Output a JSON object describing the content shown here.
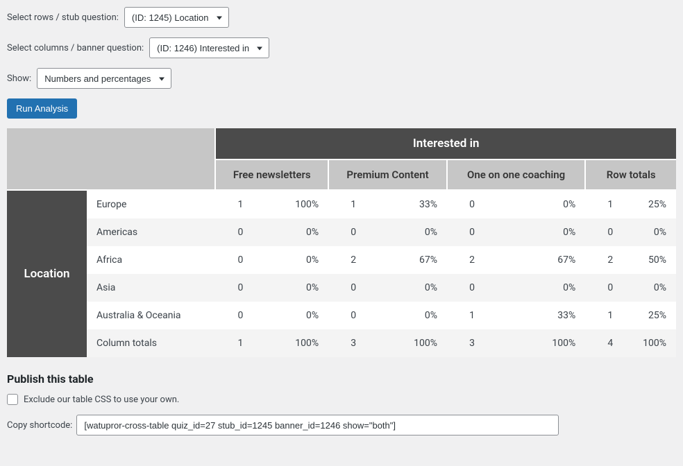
{
  "form": {
    "stub_label": "Select rows / stub question:",
    "stub_selected": "(ID: 1245) Location",
    "banner_label": "Select columns / banner question:",
    "banner_selected": "(ID: 1246) Interested in",
    "show_label": "Show:",
    "show_selected": "Numbers and percentages",
    "run_button": "Run Analysis"
  },
  "table": {
    "banner_title": "Interested in",
    "stub_title": "Location",
    "columns": [
      "Free newsletters",
      "Premium Content",
      "One on one coaching",
      "Row totals"
    ],
    "rows": [
      {
        "label": "Europe",
        "cells": [
          {
            "n": "1",
            "p": "100%"
          },
          {
            "n": "1",
            "p": "33%"
          },
          {
            "n": "0",
            "p": "0%"
          },
          {
            "n": "1",
            "p": "25%"
          }
        ]
      },
      {
        "label": "Americas",
        "cells": [
          {
            "n": "0",
            "p": "0%"
          },
          {
            "n": "0",
            "p": "0%"
          },
          {
            "n": "0",
            "p": "0%"
          },
          {
            "n": "0",
            "p": "0%"
          }
        ]
      },
      {
        "label": "Africa",
        "cells": [
          {
            "n": "0",
            "p": "0%"
          },
          {
            "n": "2",
            "p": "67%"
          },
          {
            "n": "2",
            "p": "67%"
          },
          {
            "n": "2",
            "p": "50%"
          }
        ]
      },
      {
        "label": "Asia",
        "cells": [
          {
            "n": "0",
            "p": "0%"
          },
          {
            "n": "0",
            "p": "0%"
          },
          {
            "n": "0",
            "p": "0%"
          },
          {
            "n": "0",
            "p": "0%"
          }
        ]
      },
      {
        "label": "Australia & Oceania",
        "cells": [
          {
            "n": "0",
            "p": "0%"
          },
          {
            "n": "0",
            "p": "0%"
          },
          {
            "n": "1",
            "p": "33%"
          },
          {
            "n": "1",
            "p": "25%"
          }
        ]
      },
      {
        "label": "Column totals",
        "cells": [
          {
            "n": "1",
            "p": "100%"
          },
          {
            "n": "3",
            "p": "100%"
          },
          {
            "n": "3",
            "p": "100%"
          },
          {
            "n": "4",
            "p": "100%"
          }
        ]
      }
    ],
    "colors": {
      "banner_bg": "#4b4b4b",
      "stub_bg": "#4b4b4b",
      "corner_bg": "#c6c6c6",
      "colhead_bg": "#c6c6c6",
      "alt_row_bg": "#f4f4f4"
    }
  },
  "publish": {
    "heading": "Publish this table",
    "exclude_css_label": "Exclude our table CSS to use your own.",
    "shortcode_label": "Copy shortcode:",
    "shortcode_value": "[watupror-cross-table quiz_id=27 stub_id=1245 banner_id=1246 show=\"both\"]"
  }
}
